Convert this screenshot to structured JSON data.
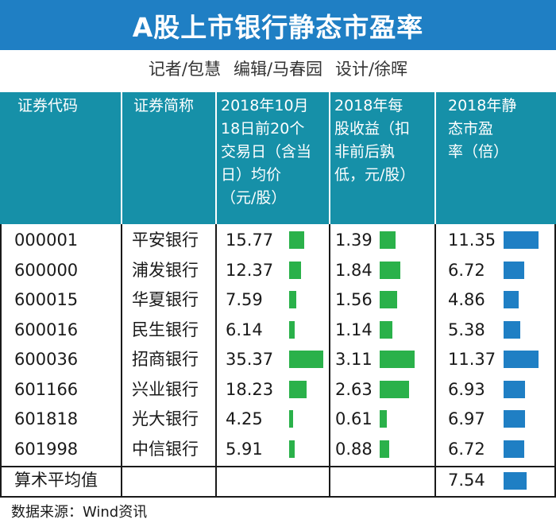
{
  "title": "A股上市银行静态市盈率",
  "credits": [
    "记者/包慧",
    "编辑/马春园",
    "设计/徐晖"
  ],
  "chart_data": {
    "type": "table",
    "columns": [
      "证券代码",
      "证券简称",
      "2018年10月\n18日前20个\n交易日（含当\n日）均价\n（元/股）",
      "2018年每\n股收益（扣\n非前后孰\n低，元/股）",
      "2018年静\n态市盈\n率（倍）"
    ],
    "rows": [
      {
        "code": "000001",
        "name": "平安银行",
        "price": "15.77",
        "eps": "1.39",
        "pe": "11.35"
      },
      {
        "code": "600000",
        "name": "浦发银行",
        "price": "12.37",
        "eps": "1.84",
        "pe": "6.72"
      },
      {
        "code": "600015",
        "name": "华夏银行",
        "price": "7.59",
        "eps": "1.56",
        "pe": "4.86"
      },
      {
        "code": "600016",
        "name": "民生银行",
        "price": "6.14",
        "eps": "1.14",
        "pe": "5.38"
      },
      {
        "code": "600036",
        "name": "招商银行",
        "price": "35.37",
        "eps": "3.11",
        "pe": "11.37"
      },
      {
        "code": "601166",
        "name": "兴业银行",
        "price": "18.23",
        "eps": "2.63",
        "pe": "6.93"
      },
      {
        "code": "601818",
        "name": "光大银行",
        "price": "4.25",
        "eps": "0.61",
        "pe": "6.97"
      },
      {
        "code": "601998",
        "name": "中信银行",
        "price": "5.91",
        "eps": "0.88",
        "pe": "6.72"
      }
    ],
    "average": {
      "label": "算术平均值",
      "pe": "7.54"
    },
    "bar_colors": {
      "price": "#2ab14a",
      "eps": "#2ab14a",
      "pe": "#1f7fc4"
    },
    "header_color": "#1690a8",
    "title_color": "#1f7fc4"
  },
  "source": "数据来源：Wind资讯"
}
